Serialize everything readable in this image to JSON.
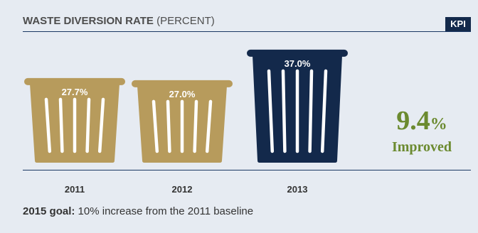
{
  "header": {
    "title_bold": "WASTE DIVERSION RATE",
    "title_light": "(PERCENT)",
    "badge": "KPI"
  },
  "chart_data": {
    "type": "bar",
    "categories": [
      "2011",
      "2012",
      "2013"
    ],
    "values": [
      27.7,
      27.0,
      37.0
    ],
    "labels": [
      "27.7%",
      "27.0%",
      "37.0%"
    ],
    "title": "WASTE DIVERSION RATE (PERCENT)",
    "ylabel": "",
    "colors": [
      "#b79b5c",
      "#b79b5c",
      "#13294b"
    ]
  },
  "kpi": {
    "value": "9.4",
    "unit": "%",
    "label": "Improved",
    "color": "#6b8a2f"
  },
  "footer": {
    "goal_label": "2015 goal:",
    "goal_text": " 10% increase from the 2011 baseline"
  }
}
